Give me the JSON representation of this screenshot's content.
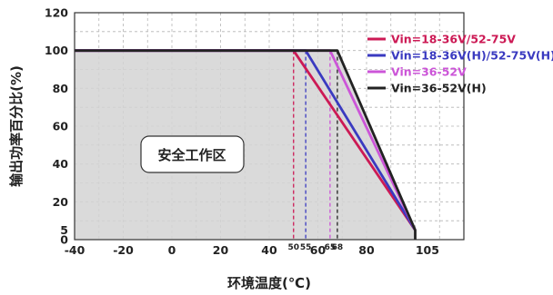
{
  "chart_data": {
    "type": "line",
    "xlabel": "环境温度(℃)",
    "ylabel": "输出功率百分比(%)",
    "xlim": [
      -40,
      120
    ],
    "ylim": [
      0,
      120
    ],
    "x_ticks": [
      "-40",
      "-20",
      "0",
      "20",
      "40",
      "60",
      "80",
      "105"
    ],
    "x_tick_values": [
      -40,
      -20,
      0,
      20,
      40,
      60,
      80,
      105
    ],
    "y_ticks": [
      "0",
      "5",
      "20",
      "40",
      "60",
      "80",
      "100",
      "120"
    ],
    "y_tick_values": [
      0,
      5,
      20,
      40,
      60,
      80,
      100,
      120
    ],
    "x_minor_labels": [
      "50",
      "55",
      "65",
      "68"
    ],
    "x_minor_values": [
      50,
      55,
      65,
      68
    ],
    "grid": true,
    "safe_zone_label": "安全工作区",
    "legend_position": "top-right",
    "series": [
      {
        "name": "Vin=18-36V/52-75V",
        "color": "#cc1a55",
        "x": [
          -40,
          50,
          100
        ],
        "y": [
          100,
          100,
          5
        ],
        "derate_start": 50
      },
      {
        "name": "Vin=18-36V(H)/52-75V(H)",
        "color": "#3a3ac0",
        "x": [
          -40,
          55,
          100
        ],
        "y": [
          100,
          100,
          5
        ],
        "derate_start": 55
      },
      {
        "name": "Vin=36-52V",
        "color": "#cc55d8",
        "x": [
          -40,
          65,
          100
        ],
        "y": [
          100,
          100,
          5
        ],
        "derate_start": 65
      },
      {
        "name": "Vin=36-52V(H)",
        "color": "#222222",
        "x": [
          -40,
          68,
          100,
          100
        ],
        "y": [
          100,
          100,
          5,
          0
        ],
        "derate_start": 68
      }
    ]
  }
}
